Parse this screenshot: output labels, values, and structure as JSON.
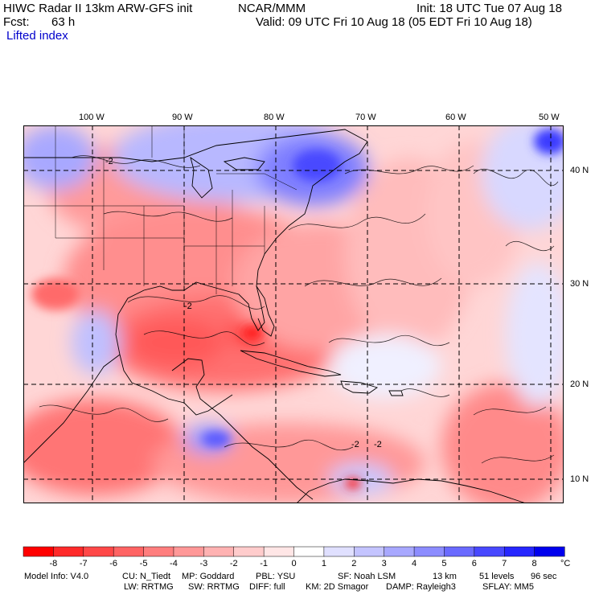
{
  "header": {
    "line1_left": "HIWC Radar II 13km ARW-GFS init",
    "line1_mid": "NCAR/MMM",
    "line1_right": "Init: 18 UTC Tue 07 Aug 18",
    "line2_left": "Fcst:",
    "line2_hours": "63 h",
    "line2_right": "Valid: 09 UTC Fri 10 Aug 18 (05 EDT Fri 10 Aug 18)",
    "field_label": "Lifted index"
  },
  "map": {
    "lon_labels": [
      "100 W",
      "90 W",
      "80 W",
      "70 W",
      "60 W",
      "50 W"
    ],
    "lat_labels": [
      "40 N",
      "30 N",
      "20 N",
      "10 N"
    ],
    "contour_labels": [
      "-2",
      "-2",
      "-2",
      "-2"
    ]
  },
  "legend": {
    "labels": [
      "-8",
      "-7",
      "-6",
      "-5",
      "-4",
      "-3",
      "-2",
      "-1",
      "0",
      "1",
      "2",
      "3",
      "4",
      "5",
      "6",
      "7",
      "8"
    ],
    "unit": "°C",
    "colors": [
      "#ff0000",
      "#ff2a2a",
      "#ff4848",
      "#ff6464",
      "#ff7e7e",
      "#ff9898",
      "#ffb2b2",
      "#ffcccc",
      "#ffe6e6",
      "#ffffff",
      "#e0e0ff",
      "#c4c4ff",
      "#a8a8ff",
      "#8c8cff",
      "#6a6aff",
      "#4848ff",
      "#2626ff",
      "#0000ee"
    ]
  },
  "model_info": {
    "line1": [
      "Model Info: V4.0",
      "CU: N_Tiedt",
      "MP: Goddard",
      "PBL: YSU",
      "SF: Noah LSM",
      "13 km",
      "51 levels",
      "96 sec"
    ],
    "line2": [
      "LW: RRTMG",
      "SW: RRTMG",
      "DIFF: full",
      "KM: 2D Smagor",
      "DAMP: Rayleigh3",
      "SFLAY: MM5"
    ]
  }
}
